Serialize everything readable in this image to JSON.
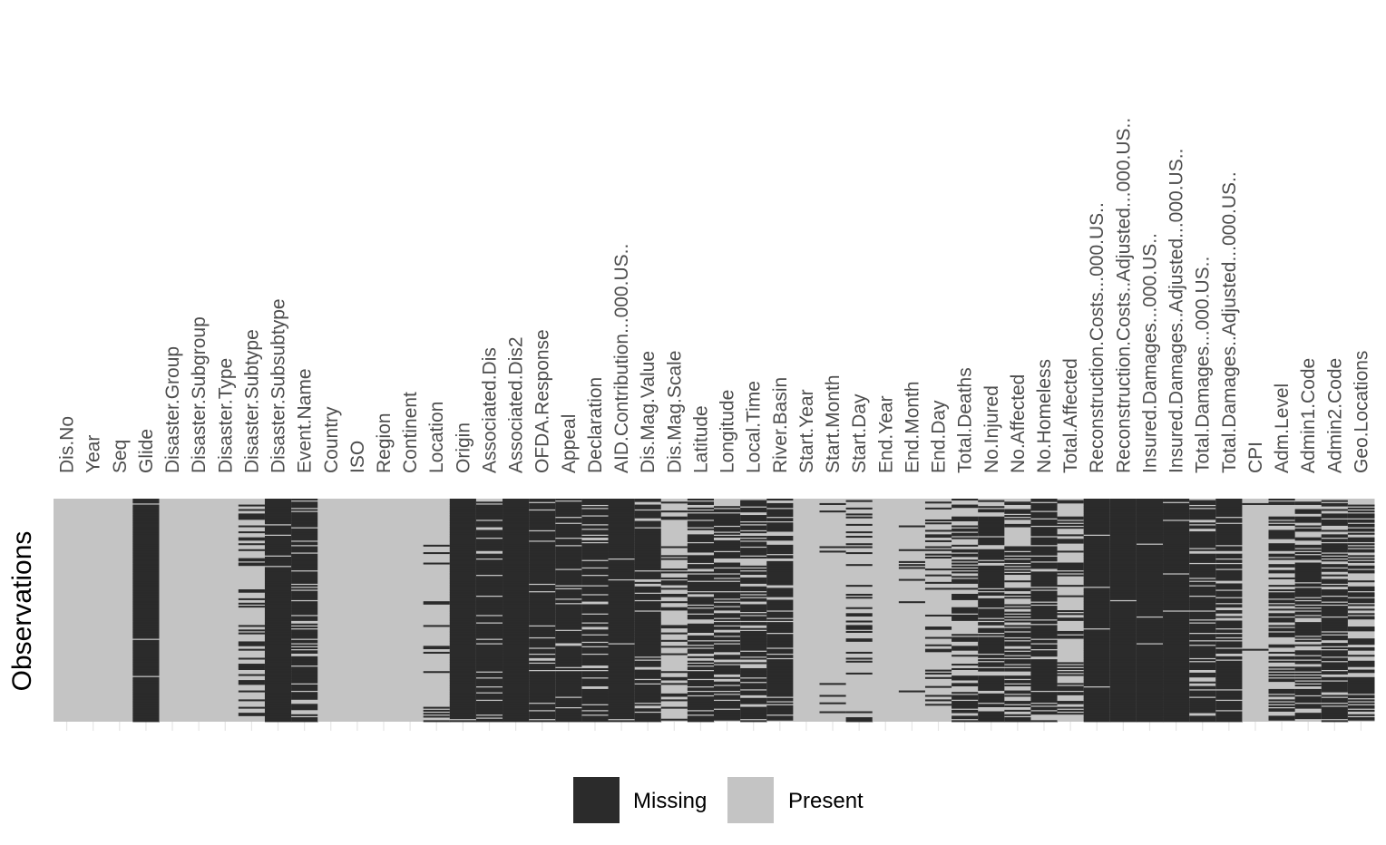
{
  "chart_data": {
    "type": "heatmap",
    "title": "",
    "xlabel": "",
    "ylabel": "Observations",
    "columns": [
      "Dis.No",
      "Year",
      "Seq",
      "Glide",
      "Disaster.Group",
      "Disaster.Subgroup",
      "Disaster.Type",
      "Disaster.Subtype",
      "Disaster.Subsubtype",
      "Event.Name",
      "Country",
      "ISO",
      "Region",
      "Continent",
      "Location",
      "Origin",
      "Associated.Dis",
      "Associated.Dis2",
      "OFDA.Response",
      "Appeal",
      "Declaration",
      "AID.Contribution...000.US..",
      "Dis.Mag.Value",
      "Dis.Mag.Scale",
      "Latitude",
      "Longitude",
      "Local.Time",
      "River.Basin",
      "Start.Year",
      "Start.Month",
      "Start.Day",
      "End.Year",
      "End.Month",
      "End.Day",
      "Total.Deaths",
      "No.Injured",
      "No.Affected",
      "No.Homeless",
      "Total.Affected",
      "Reconstruction.Costs...000.US..",
      "Reconstruction.Costs..Adjusted...000.US..",
      "Insured.Damages...000.US..",
      "Insured.Damages..Adjusted...000.US..",
      "Total.Damages...000.US..",
      "Total.Damages..Adjusted...000.US..",
      "CPI",
      "Adm.Level",
      "Admin1.Code",
      "Admin2.Code",
      "Geo.Locations"
    ],
    "column_labels": [
      "Dis.No",
      "Year",
      "Seq",
      "Glide",
      "Disaster.Group",
      "Disaster.Subgroup",
      "Disaster.Type",
      "Disaster.Subtype",
      "Disaster.Subsubtype",
      "Event.Name",
      "Country",
      "ISO",
      "Region",
      "Continent",
      "Location",
      "Origin",
      "Associated.Dis",
      "Associated.Dis2",
      "OFDA.Response",
      "Appeal",
      "Declaration",
      "AID.Contribution...000.US..",
      "Dis.Mag.Value",
      "Dis.Mag.Scale",
      "Latitude",
      "Longitude",
      "Local.Time",
      "River.Basin",
      "Start.Year",
      "Start.Month",
      "Start.Day",
      "End.Year",
      "End.Month",
      "End.Day",
      "Total.Deaths",
      "No.Injured",
      "No.Affected",
      "No.Homeless",
      "Total.Affected",
      "Reconstruction.Costs...000.US..",
      "Reconstruction.Costs..Adjusted...000.US..",
      "Insured.Damages...000.US..",
      "Insured.Damages..Adjusted...000.US..",
      "Total.Damages...000.US..",
      "Total.Damages..Adjusted...000.US..",
      "CPI",
      "Adm.Level",
      "Admin1.Code",
      "Admin2.Code",
      "Geo.Locations"
    ],
    "missing_fraction": [
      0,
      0,
      0,
      0.99,
      0,
      0,
      0,
      0.3,
      0.98,
      0.8,
      0,
      0,
      0,
      0,
      0.1,
      0.98,
      0.85,
      0.97,
      0.9,
      0.85,
      0.8,
      0.97,
      0.85,
      0.2,
      0.75,
      0.75,
      0.7,
      0.85,
      0,
      0.03,
      0.25,
      0,
      0.05,
      0.2,
      0.45,
      0.8,
      0.45,
      0.75,
      0.3,
      0.99,
      0.99,
      0.96,
      0.96,
      0.8,
      0.8,
      0.01,
      0.5,
      0.65,
      0.6,
      0.5
    ],
    "legend": {
      "entries": [
        {
          "label": "Missing",
          "color": "#2b2b2b"
        },
        {
          "label": "Present",
          "color": "#c4c4c4"
        }
      ],
      "position": "bottom"
    },
    "colors": {
      "missing": "#2b2b2b",
      "present": "#c4c4c4",
      "grid": "#e5e5e5"
    }
  }
}
